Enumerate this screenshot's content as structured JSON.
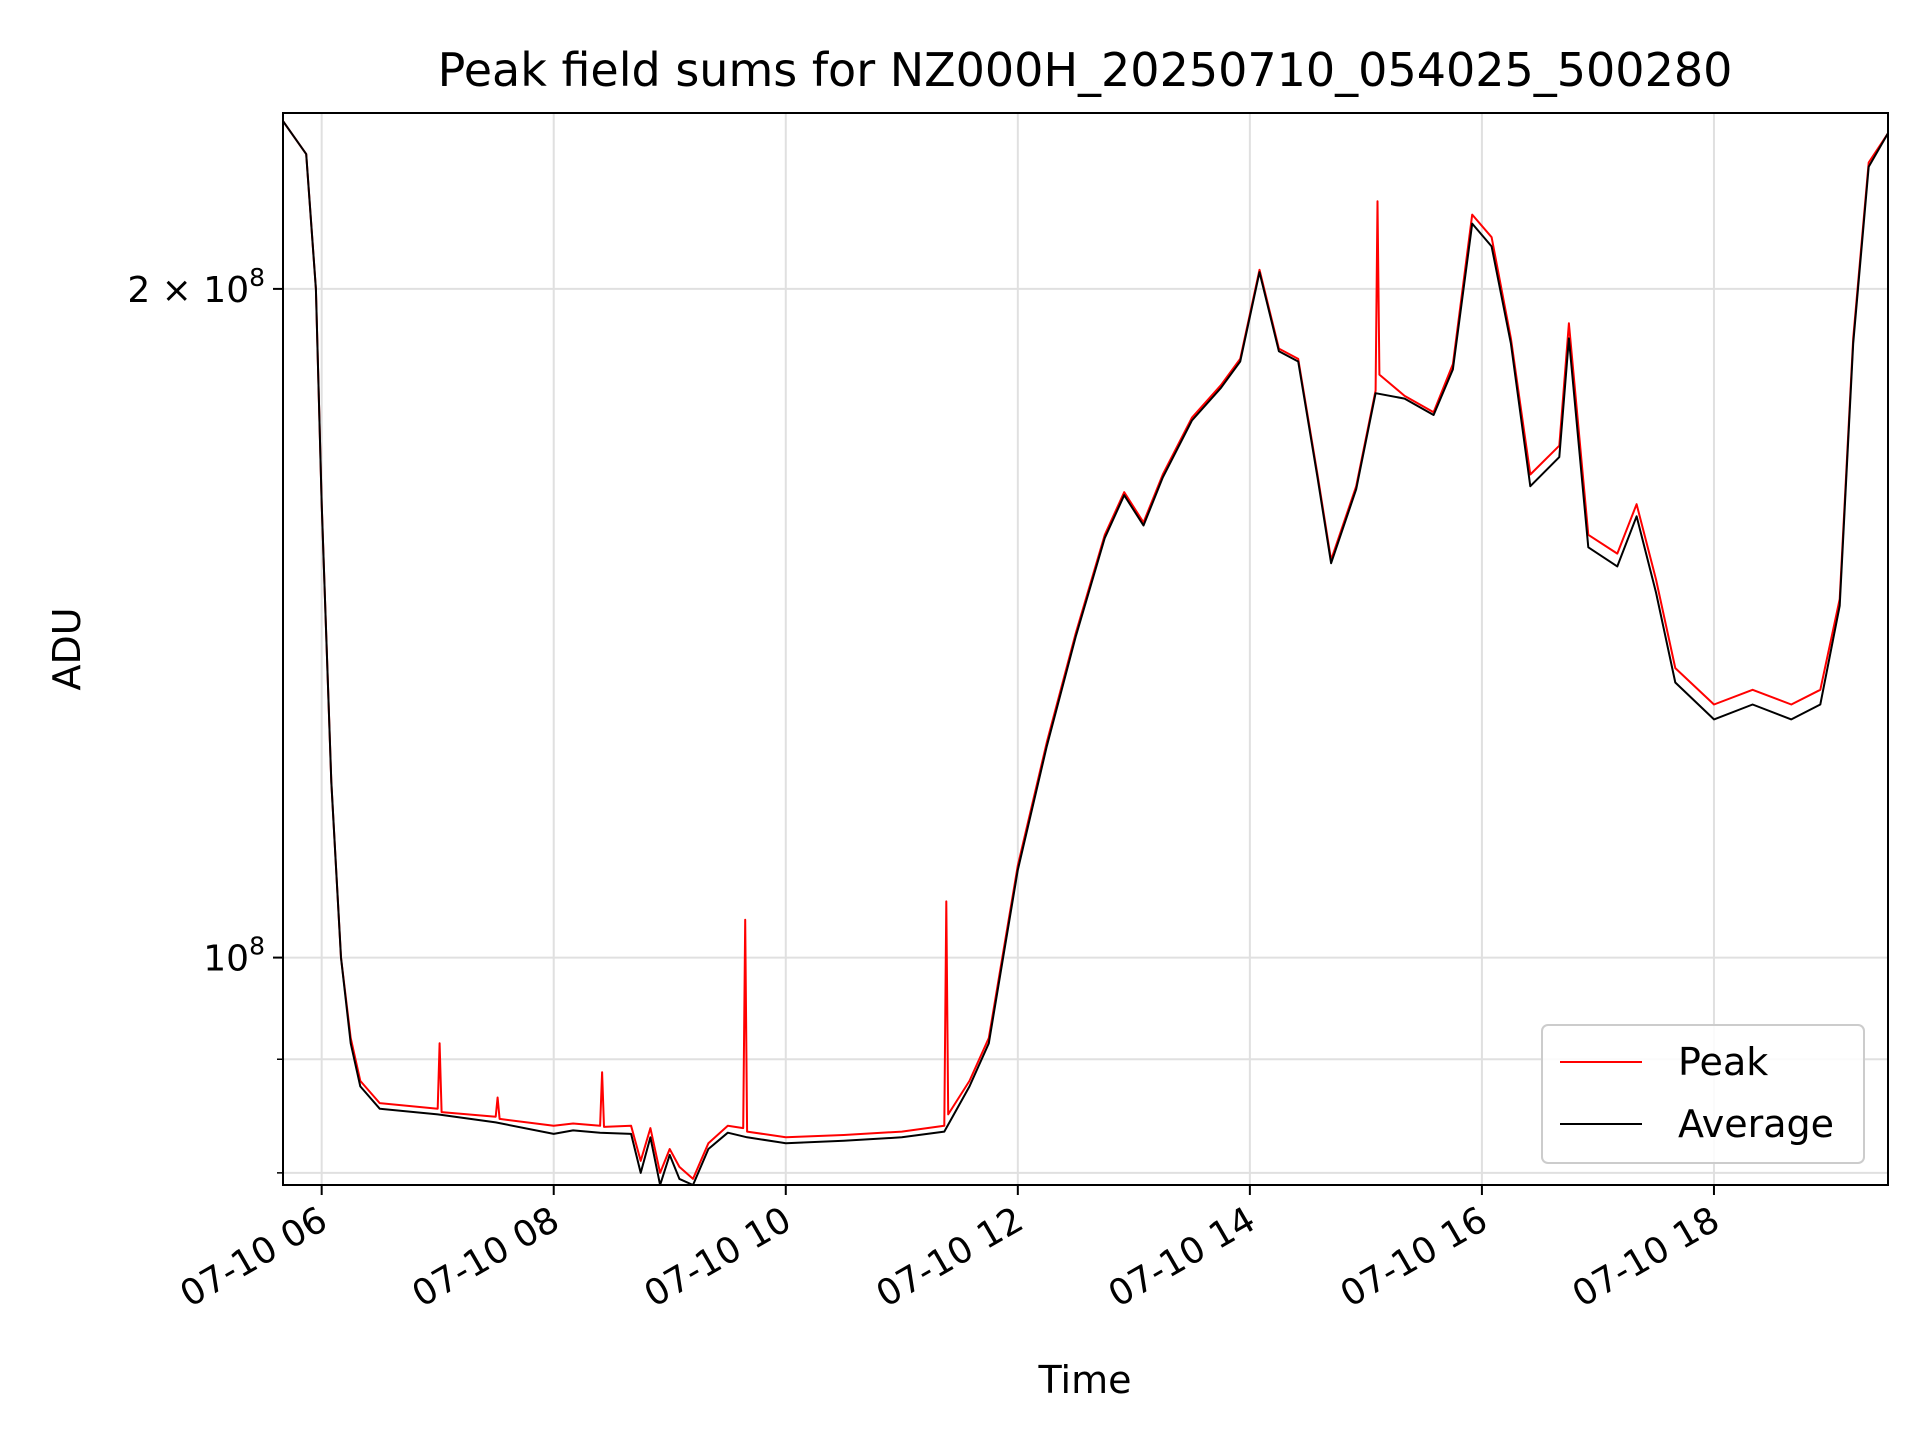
{
  "chart_data": {
    "type": "line",
    "title": "Peak field sums for NZ000H_20250710_054025_500280",
    "xlabel": "Time",
    "ylabel": "ADU",
    "y_scale": "log",
    "ylim": [
      79000000,
      240000000
    ],
    "xlim": [
      "2025-07-10T05:40",
      "2025-07-10T19:30"
    ],
    "grid": true,
    "legend_position": "lower right",
    "x_ticks": [
      {
        "value": "2025-07-10T06:00",
        "label": "07-10 06"
      },
      {
        "value": "2025-07-10T08:00",
        "label": "07-10 08"
      },
      {
        "value": "2025-07-10T10:00",
        "label": "07-10 10"
      },
      {
        "value": "2025-07-10T12:00",
        "label": "07-10 12"
      },
      {
        "value": "2025-07-10T14:00",
        "label": "07-10 14"
      },
      {
        "value": "2025-07-10T16:00",
        "label": "07-10 16"
      },
      {
        "value": "2025-07-10T18:00",
        "label": "07-10 18"
      }
    ],
    "y_major_ticks": [
      {
        "value": 100000000,
        "base": "10",
        "exp": "8"
      },
      {
        "value": 200000000,
        "base": "2 × 10",
        "exp": "8"
      }
    ],
    "y_minor_ticks": [
      80000000,
      90000000
    ],
    "series": [
      {
        "name": "Peak",
        "color": "#ff0000",
        "points": [
          [
            "2025-07-10T05:40",
            238000000
          ],
          [
            "2025-07-10T05:52",
            230000000
          ],
          [
            "2025-07-10T05:57",
            200000000
          ],
          [
            "2025-07-10T06:00",
            160000000
          ],
          [
            "2025-07-10T06:05",
            120000000
          ],
          [
            "2025-07-10T06:10",
            100000000
          ],
          [
            "2025-07-10T06:15",
            92000000
          ],
          [
            "2025-07-10T06:20",
            88000000
          ],
          [
            "2025-07-10T06:30",
            86000000
          ],
          [
            "2025-07-10T07:00",
            85500000
          ],
          [
            "2025-07-10T07:01",
            91500000
          ],
          [
            "2025-07-10T07:02",
            85200000
          ],
          [
            "2025-07-10T07:30",
            84800000
          ],
          [
            "2025-07-10T07:31",
            86500000
          ],
          [
            "2025-07-10T07:32",
            84600000
          ],
          [
            "2025-07-10T08:00",
            84000000
          ],
          [
            "2025-07-10T08:10",
            84200000
          ],
          [
            "2025-07-10T08:24",
            84000000
          ],
          [
            "2025-07-10T08:25",
            88800000
          ],
          [
            "2025-07-10T08:26",
            83900000
          ],
          [
            "2025-07-10T08:40",
            84000000
          ],
          [
            "2025-07-10T08:45",
            81000000
          ],
          [
            "2025-07-10T08:50",
            83800000
          ],
          [
            "2025-07-10T08:55",
            80000000
          ],
          [
            "2025-07-10T09:00",
            82000000
          ],
          [
            "2025-07-10T09:05",
            80500000
          ],
          [
            "2025-07-10T09:12",
            79500000
          ],
          [
            "2025-07-10T09:20",
            82500000
          ],
          [
            "2025-07-10T09:30",
            84000000
          ],
          [
            "2025-07-10T09:38",
            83800000
          ],
          [
            "2025-07-10T09:39",
            104000000
          ],
          [
            "2025-07-10T09:40",
            83500000
          ],
          [
            "2025-07-10T10:00",
            83000000
          ],
          [
            "2025-07-10T10:30",
            83200000
          ],
          [
            "2025-07-10T11:00",
            83500000
          ],
          [
            "2025-07-10T11:22",
            84000000
          ],
          [
            "2025-07-10T11:23",
            106000000
          ],
          [
            "2025-07-10T11:24",
            85000000
          ],
          [
            "2025-07-10T11:35",
            88000000
          ],
          [
            "2025-07-10T11:45",
            92000000
          ],
          [
            "2025-07-10T11:52",
            100000000
          ],
          [
            "2025-07-10T12:00",
            110000000
          ],
          [
            "2025-07-10T12:15",
            125000000
          ],
          [
            "2025-07-10T12:30",
            140000000
          ],
          [
            "2025-07-10T12:45",
            155000000
          ],
          [
            "2025-07-10T12:55",
            162000000
          ],
          [
            "2025-07-10T13:05",
            157000000
          ],
          [
            "2025-07-10T13:15",
            165000000
          ],
          [
            "2025-07-10T13:30",
            175000000
          ],
          [
            "2025-07-10T13:45",
            181000000
          ],
          [
            "2025-07-10T13:55",
            186000000
          ],
          [
            "2025-07-10T14:05",
            204000000
          ],
          [
            "2025-07-10T14:15",
            188000000
          ],
          [
            "2025-07-10T14:25",
            186000000
          ],
          [
            "2025-07-10T14:35",
            165000000
          ],
          [
            "2025-07-10T14:42",
            151000000
          ],
          [
            "2025-07-10T14:55",
            163000000
          ],
          [
            "2025-07-10T15:05",
            180000000
          ],
          [
            "2025-07-10T15:06",
            219000000
          ],
          [
            "2025-07-10T15:07",
            183000000
          ],
          [
            "2025-07-10T15:20",
            179000000
          ],
          [
            "2025-07-10T15:35",
            176000000
          ],
          [
            "2025-07-10T15:45",
            185000000
          ],
          [
            "2025-07-10T15:55",
            216000000
          ],
          [
            "2025-07-10T16:05",
            211000000
          ],
          [
            "2025-07-10T16:15",
            190000000
          ],
          [
            "2025-07-10T16:25",
            165000000
          ],
          [
            "2025-07-10T16:40",
            170000000
          ],
          [
            "2025-07-10T16:45",
            193000000
          ],
          [
            "2025-07-10T16:55",
            155000000
          ],
          [
            "2025-07-10T17:10",
            152000000
          ],
          [
            "2025-07-10T17:20",
            160000000
          ],
          [
            "2025-07-10T17:30",
            148000000
          ],
          [
            "2025-07-10T17:40",
            135000000
          ],
          [
            "2025-07-10T18:00",
            130000000
          ],
          [
            "2025-07-10T18:20",
            132000000
          ],
          [
            "2025-07-10T18:40",
            130000000
          ],
          [
            "2025-07-10T18:55",
            132000000
          ],
          [
            "2025-07-10T19:05",
            145000000
          ],
          [
            "2025-07-10T19:12",
            190000000
          ],
          [
            "2025-07-10T19:20",
            228000000
          ],
          [
            "2025-07-10T19:30",
            235000000
          ]
        ]
      },
      {
        "name": "Average",
        "color": "#000000",
        "points": [
          [
            "2025-07-10T05:40",
            238000000
          ],
          [
            "2025-07-10T05:52",
            230000000
          ],
          [
            "2025-07-10T05:57",
            200000000
          ],
          [
            "2025-07-10T06:00",
            160000000
          ],
          [
            "2025-07-10T06:05",
            120000000
          ],
          [
            "2025-07-10T06:10",
            100000000
          ],
          [
            "2025-07-10T06:15",
            91500000
          ],
          [
            "2025-07-10T06:20",
            87500000
          ],
          [
            "2025-07-10T06:30",
            85500000
          ],
          [
            "2025-07-10T07:00",
            85000000
          ],
          [
            "2025-07-10T07:30",
            84300000
          ],
          [
            "2025-07-10T08:00",
            83300000
          ],
          [
            "2025-07-10T08:10",
            83600000
          ],
          [
            "2025-07-10T08:24",
            83400000
          ],
          [
            "2025-07-10T08:40",
            83300000
          ],
          [
            "2025-07-10T08:45",
            80000000
          ],
          [
            "2025-07-10T08:50",
            83000000
          ],
          [
            "2025-07-10T08:55",
            79000000
          ],
          [
            "2025-07-10T09:00",
            81500000
          ],
          [
            "2025-07-10T09:05",
            79500000
          ],
          [
            "2025-07-10T09:12",
            79000000
          ],
          [
            "2025-07-10T09:20",
            82000000
          ],
          [
            "2025-07-10T09:30",
            83400000
          ],
          [
            "2025-07-10T09:40",
            83000000
          ],
          [
            "2025-07-10T10:00",
            82500000
          ],
          [
            "2025-07-10T10:30",
            82700000
          ],
          [
            "2025-07-10T11:00",
            83000000
          ],
          [
            "2025-07-10T11:22",
            83500000
          ],
          [
            "2025-07-10T11:35",
            87500000
          ],
          [
            "2025-07-10T11:45",
            91500000
          ],
          [
            "2025-07-10T11:52",
            99500000
          ],
          [
            "2025-07-10T12:00",
            109500000
          ],
          [
            "2025-07-10T12:15",
            124500000
          ],
          [
            "2025-07-10T12:30",
            139500000
          ],
          [
            "2025-07-10T12:45",
            154500000
          ],
          [
            "2025-07-10T12:55",
            161500000
          ],
          [
            "2025-07-10T13:05",
            156500000
          ],
          [
            "2025-07-10T13:15",
            164500000
          ],
          [
            "2025-07-10T13:30",
            174500000
          ],
          [
            "2025-07-10T13:45",
            180500000
          ],
          [
            "2025-07-10T13:55",
            185500000
          ],
          [
            "2025-07-10T14:05",
            203500000
          ],
          [
            "2025-07-10T14:15",
            187500000
          ],
          [
            "2025-07-10T14:25",
            185500000
          ],
          [
            "2025-07-10T14:35",
            164500000
          ],
          [
            "2025-07-10T14:42",
            150500000
          ],
          [
            "2025-07-10T14:55",
            162500000
          ],
          [
            "2025-07-10T15:05",
            179500000
          ],
          [
            "2025-07-10T15:20",
            178500000
          ],
          [
            "2025-07-10T15:35",
            175500000
          ],
          [
            "2025-07-10T15:45",
            184000000
          ],
          [
            "2025-07-10T15:55",
            214000000
          ],
          [
            "2025-07-10T16:05",
            209000000
          ],
          [
            "2025-07-10T16:15",
            189000000
          ],
          [
            "2025-07-10T16:25",
            163000000
          ],
          [
            "2025-07-10T16:40",
            168000000
          ],
          [
            "2025-07-10T16:45",
            190000000
          ],
          [
            "2025-07-10T16:55",
            153000000
          ],
          [
            "2025-07-10T17:10",
            150000000
          ],
          [
            "2025-07-10T17:20",
            158000000
          ],
          [
            "2025-07-10T17:30",
            146000000
          ],
          [
            "2025-07-10T17:40",
            133000000
          ],
          [
            "2025-07-10T18:00",
            128000000
          ],
          [
            "2025-07-10T18:20",
            130000000
          ],
          [
            "2025-07-10T18:40",
            128000000
          ],
          [
            "2025-07-10T18:55",
            130000000
          ],
          [
            "2025-07-10T19:05",
            144000000
          ],
          [
            "2025-07-10T19:12",
            189000000
          ],
          [
            "2025-07-10T19:20",
            227000000
          ],
          [
            "2025-07-10T19:30",
            235000000
          ]
        ]
      }
    ]
  }
}
